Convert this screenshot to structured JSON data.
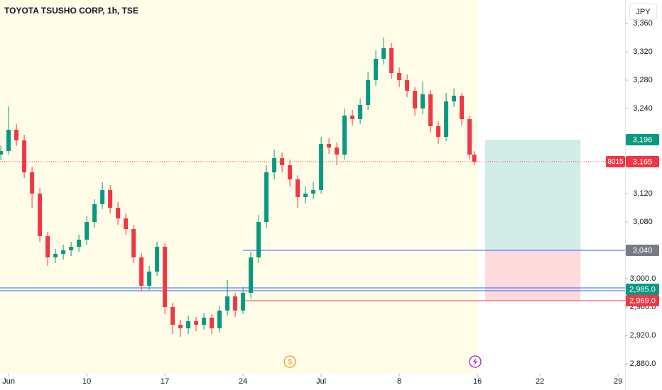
{
  "chart_data": {
    "type": "candlestick",
    "title": "TOYOTA TSUSHO CORP, 1h, TSE",
    "currency": "JPY",
    "up_color": "#089981",
    "down_color": "#f23645",
    "xlim": [
      -0.55,
      39.45
    ],
    "ylim": [
      2866,
      3393
    ],
    "xticks": [
      {
        "value": 0,
        "label": "Jun"
      },
      {
        "value": 5,
        "label": "10"
      },
      {
        "value": 10,
        "label": "17"
      },
      {
        "value": 15,
        "label": "24"
      },
      {
        "value": 20,
        "label": "Jul"
      },
      {
        "value": 25,
        "label": "8"
      },
      {
        "value": 30,
        "label": "16"
      },
      {
        "value": 34,
        "label": "22"
      },
      {
        "value": 39,
        "label": "29"
      }
    ],
    "yticks": [
      {
        "value": 2880,
        "label": "2,880.0"
      },
      {
        "value": 2920,
        "label": "2,920.0"
      },
      {
        "value": 2960,
        "label": "2,960.0"
      },
      {
        "value": 3000,
        "label": "3,000.0"
      },
      {
        "value": 3080,
        "label": "3,080"
      },
      {
        "value": 3120,
        "label": "3,120"
      },
      {
        "value": 3240,
        "label": "3,240"
      },
      {
        "value": 3280,
        "label": "3,280"
      },
      {
        "value": 3320,
        "label": "3,320"
      },
      {
        "value": 3360,
        "label": "3,360"
      }
    ],
    "x": [
      -0.5,
      0,
      0.5,
      1,
      1.5,
      2,
      2.5,
      3,
      3.5,
      4,
      4.5,
      5,
      5.5,
      6,
      6.5,
      7,
      7.5,
      8,
      8.5,
      9,
      9.5,
      10,
      10.5,
      11,
      11.5,
      12,
      12.5,
      13,
      13.5,
      14,
      14.5,
      15,
      15.5,
      16,
      16.5,
      17,
      17.5,
      18,
      18.5,
      19,
      19.5,
      20,
      20.5,
      21,
      21.5,
      22,
      22.5,
      23,
      23.5,
      24,
      24.5,
      25,
      25.5,
      26,
      26.5,
      27,
      27.5,
      28,
      28.5,
      29,
      29.5,
      29.8
    ],
    "open": [
      3175,
      3180,
      3210,
      3195,
      3150,
      3120,
      3060,
      3030,
      3035,
      3040,
      3045,
      3055,
      3080,
      3105,
      3125,
      3100,
      3085,
      3070,
      3030,
      2990,
      3010,
      3045,
      2960,
      2935,
      2930,
      2940,
      2935,
      2945,
      2930,
      2955,
      2975,
      2955,
      2980,
      3030,
      3080,
      3150,
      3170,
      3160,
      3140,
      3115,
      3120,
      3125,
      3190,
      3185,
      3175,
      3230,
      3225,
      3245,
      3280,
      3310,
      3325,
      3290,
      3280,
      3265,
      3240,
      3260,
      3215,
      3200,
      3250,
      3258,
      3225,
      3175
    ],
    "high": [
      3188,
      3243,
      3218,
      3203,
      3158,
      3128,
      3066,
      3042,
      3048,
      3052,
      3062,
      3088,
      3112,
      3136,
      3132,
      3108,
      3092,
      3076,
      3036,
      3018,
      3052,
      3050,
      2966,
      2942,
      2948,
      2946,
      2952,
      2950,
      2962,
      2998,
      2980,
      2988,
      3038,
      3090,
      3160,
      3182,
      3178,
      3168,
      3146,
      3130,
      3136,
      3200,
      3198,
      3192,
      3240,
      3238,
      3254,
      3292,
      3322,
      3340,
      3332,
      3298,
      3288,
      3270,
      3278,
      3266,
      3222,
      3262,
      3268,
      3262,
      3230,
      3180
    ],
    "low": [
      3167,
      3175,
      3187,
      3142,
      3100,
      3052,
      3018,
      3022,
      3027,
      3032,
      3038,
      3048,
      3072,
      3098,
      3092,
      3076,
      3062,
      3022,
      2982,
      2984,
      3004,
      2950,
      2922,
      2918,
      2922,
      2926,
      2928,
      2922,
      2924,
      2948,
      2946,
      2950,
      2972,
      3022,
      3072,
      3140,
      3150,
      3130,
      3100,
      3106,
      3112,
      3120,
      3176,
      3160,
      3168,
      3216,
      3218,
      3238,
      3272,
      3302,
      3282,
      3270,
      3256,
      3230,
      3232,
      3206,
      3190,
      3194,
      3242,
      3216,
      3168,
      3160
    ],
    "close": [
      3180,
      3210,
      3195,
      3150,
      3120,
      3060,
      3030,
      3035,
      3040,
      3045,
      3055,
      3080,
      3105,
      3125,
      3100,
      3085,
      3070,
      3030,
      2990,
      3010,
      3045,
      2960,
      2935,
      2930,
      2940,
      2935,
      2945,
      2930,
      2955,
      2975,
      2955,
      2980,
      3030,
      3080,
      3150,
      3170,
      3160,
      3140,
      3115,
      3120,
      3125,
      3190,
      3185,
      3175,
      3230,
      3225,
      3245,
      3280,
      3310,
      3325,
      3290,
      3280,
      3265,
      3240,
      3260,
      3215,
      3200,
      3250,
      3258,
      3225,
      3175,
      3165
    ],
    "last_price": {
      "value": 3165,
      "label": "3,165",
      "countdown": "8015",
      "color": "#f23645"
    },
    "position": {
      "x_start": 30.5,
      "x_end": 36.6,
      "line_start": 15,
      "entry": 3040,
      "entry_label": "3,040",
      "entry_color": "#3d5afe",
      "target": 3196,
      "target_label": "3,196",
      "target_color": "#089981",
      "stop": 2969,
      "stop_label": "2,969.0",
      "stop_color": "#f23645"
    },
    "level": {
      "value": 2985,
      "label": "2,985.0",
      "line_color": "#2962ff",
      "tag_color": "#089981"
    },
    "events": [
      {
        "x": 18,
        "label": "$"
      }
    ]
  }
}
